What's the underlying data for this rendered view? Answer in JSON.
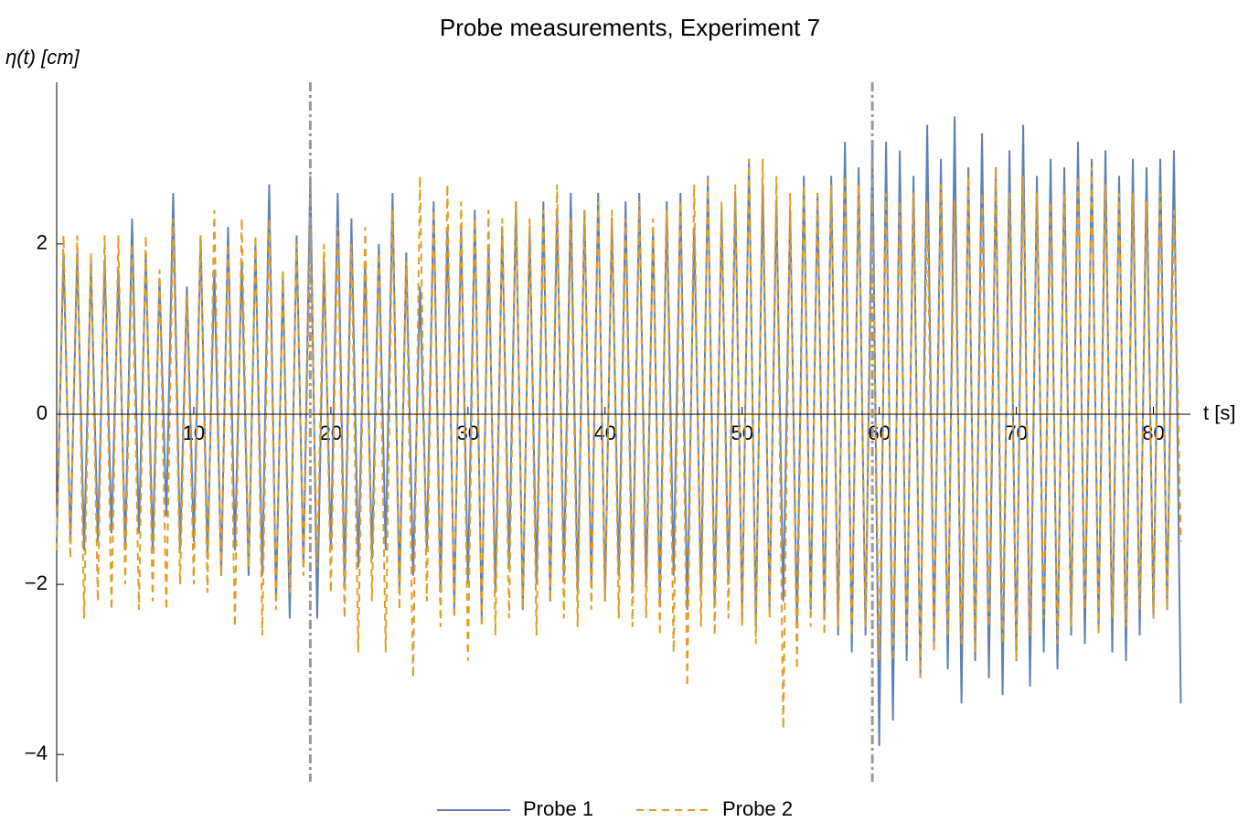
{
  "chart_data": {
    "type": "line",
    "title": "Probe measurements, Experiment 7",
    "ylabel": "η(t) [cm]",
    "xlabel": "t [s]",
    "xlim": [
      0,
      82.7
    ],
    "ylim": [
      -4.32,
      3.9
    ],
    "xticks": [
      10,
      20,
      30,
      40,
      50,
      60,
      70,
      80
    ],
    "yticks": [
      {
        "value": -4,
        "label": "−4"
      },
      {
        "value": -2,
        "label": "−2"
      },
      0,
      2
    ],
    "vlines": [
      18.5,
      59.5
    ],
    "vline_color": "#9a9a9a",
    "legend": "bottom",
    "x": [
      0,
      0.5,
      1,
      1.5,
      2,
      2.5,
      3,
      3.5,
      4,
      4.5,
      5,
      5.5,
      6,
      6.5,
      7,
      7.5,
      8,
      8.5,
      9,
      9.5,
      10,
      10.5,
      11,
      11.5,
      12,
      12.5,
      13,
      13.5,
      14,
      14.5,
      15,
      15.5,
      16,
      16.5,
      17,
      17.5,
      18,
      18.5,
      19,
      19.5,
      20,
      20.5,
      21,
      21.5,
      22,
      22.5,
      23,
      23.5,
      24,
      24.5,
      25,
      25.5,
      26,
      26.5,
      27,
      27.5,
      28,
      28.5,
      29,
      29.5,
      30,
      30.5,
      31,
      31.5,
      32,
      32.5,
      33,
      33.5,
      34,
      34.5,
      35,
      35.5,
      36,
      36.5,
      37,
      37.5,
      38,
      38.5,
      39,
      39.5,
      40,
      40.5,
      41,
      41.5,
      42,
      42.5,
      43,
      43.5,
      44,
      44.5,
      45,
      45.5,
      46,
      46.5,
      47,
      47.5,
      48,
      48.5,
      49,
      49.5,
      50,
      50.5,
      51,
      51.5,
      52,
      52.5,
      53,
      53.5,
      54,
      54.5,
      55,
      55.5,
      56,
      56.5,
      57,
      57.5,
      58,
      58.5,
      59,
      59.5,
      60,
      60.5,
      61,
      61.5,
      62,
      62.5,
      63,
      63.5,
      64,
      64.5,
      65,
      65.5,
      66,
      66.5,
      67,
      67.5,
      68,
      68.5,
      69,
      69.5,
      70,
      70.5,
      71,
      71.5,
      72,
      72.5,
      73,
      73.5,
      74,
      74.5,
      75,
      75.5,
      76,
      76.5,
      77,
      77.5,
      78,
      78.5,
      79,
      79.5,
      80,
      80.5,
      81,
      81.5,
      82
    ],
    "series": [
      {
        "name": "Probe 1",
        "color": "#5e81b5",
        "dash": false,
        "values": [
          -1.5,
          1.9,
          -1.5,
          1.9,
          -1.6,
          1.8,
          -1.5,
          1.8,
          -1.4,
          1.7,
          -1.6,
          2.3,
          -1.4,
          1.9,
          -1.6,
          1.6,
          -1.2,
          2.6,
          -1.6,
          1.5,
          -1.5,
          2.1,
          -1.7,
          1.7,
          -1.9,
          2.2,
          -1.6,
          1.8,
          -1.9,
          2.0,
          -1.9,
          2.7,
          -2.2,
          1.6,
          -2.4,
          2.1,
          -1.8,
          2.8,
          -2.4,
          1.8,
          -1.6,
          2.6,
          -2.0,
          2.3,
          -1.8,
          1.8,
          -1.7,
          2.0,
          -1.6,
          2.6,
          -2.1,
          1.9,
          -1.9,
          1.5,
          -1.6,
          2.5,
          -2.1,
          2.2,
          -2.3,
          2.2,
          -2.0,
          2.4,
          -2.4,
          2.0,
          -2.1,
          2.2,
          -1.8,
          2.5,
          -2.3,
          2.2,
          -2.0,
          2.5,
          -2.2,
          2.4,
          -1.9,
          2.6,
          -2.1,
          2.4,
          -2.0,
          2.6,
          -2.2,
          2.3,
          -1.9,
          2.5,
          -2.1,
          2.6,
          -2.0,
          2.2,
          -2.2,
          2.5,
          -1.9,
          2.6,
          -2.3,
          2.2,
          -2.1,
          2.8,
          -2.2,
          2.4,
          -2.0,
          2.6,
          -2.4,
          3.0,
          -2.5,
          2.7,
          -2.3,
          2.5,
          -2.2,
          2.4,
          -2.5,
          2.8,
          -2.3,
          2.6,
          -2.4,
          2.8,
          -2.6,
          3.2,
          -2.8,
          2.9,
          -2.6,
          3.2,
          -3.9,
          3.2,
          -3.6,
          3.1,
          -2.9,
          2.8,
          -3.1,
          3.4,
          -2.7,
          3.0,
          -3.0,
          3.5,
          -3.4,
          2.9,
          -2.9,
          3.3,
          -3.1,
          2.9,
          -3.3,
          3.1,
          -2.9,
          3.4,
          -3.2,
          2.8,
          -2.8,
          3.0,
          -3.0,
          2.9,
          -2.6,
          3.2,
          -2.7,
          3.0,
          -2.5,
          3.1,
          -2.8,
          2.8,
          -2.9,
          3.0,
          -2.6,
          2.9,
          -2.4,
          3.0,
          -2.3,
          3.1,
          -3.4
        ]
      },
      {
        "name": "Probe 2",
        "color": "#e19c24",
        "dash": true,
        "values": [
          -1.6,
          2.1,
          -1.7,
          2.1,
          -2.4,
          1.9,
          -2.2,
          2.1,
          -2.3,
          2.1,
          -2.0,
          2.0,
          -2.3,
          2.1,
          -2.2,
          1.7,
          -2.3,
          2.3,
          -2.0,
          1.4,
          -2.0,
          2.1,
          -2.1,
          2.4,
          -1.9,
          2.0,
          -2.5,
          2.3,
          -1.8,
          2.1,
          -2.6,
          2.3,
          -2.3,
          1.7,
          -2.1,
          2.0,
          -1.9,
          2.2,
          -1.8,
          2.0,
          -2.1,
          2.2,
          -2.4,
          2.0,
          -2.8,
          2.2,
          -2.2,
          1.9,
          -2.8,
          2.4,
          -2.3,
          1.8,
          -3.1,
          2.8,
          -2.2,
          2.4,
          -2.5,
          2.7,
          -2.4,
          2.5,
          -2.9,
          2.3,
          -2.5,
          2.4,
          -2.6,
          2.3,
          -2.4,
          2.5,
          -2.3,
          2.3,
          -2.6,
          2.4,
          -2.2,
          2.7,
          -2.4,
          2.3,
          -2.5,
          2.4,
          -2.3,
          2.5,
          -2.2,
          2.4,
          -2.4,
          2.3,
          -2.5,
          2.5,
          -2.4,
          2.3,
          -2.6,
          2.4,
          -2.8,
          2.5,
          -3.2,
          2.7,
          -2.5,
          2.8,
          -2.6,
          2.5,
          -2.4,
          2.7,
          -2.5,
          3.0,
          -2.7,
          3.0,
          -2.4,
          2.8,
          -3.7,
          2.6,
          -3.0,
          2.7,
          -2.5,
          2.6,
          -2.6,
          2.7,
          -2.5,
          2.8,
          -2.6,
          2.7,
          -2.5,
          2.5,
          -2.9,
          2.6,
          -2.9,
          2.5,
          -2.7,
          2.6,
          -3.1,
          2.5,
          -2.8,
          2.7,
          -2.6,
          2.5,
          -2.7,
          2.8,
          -2.8,
          2.6,
          -2.5,
          2.9,
          -2.7,
          2.6,
          -2.9,
          2.8,
          -2.6,
          2.6,
          -2.4,
          2.5,
          -2.7,
          2.6,
          -2.5,
          2.8,
          -2.3,
          2.9,
          -2.6,
          2.7,
          -2.4,
          2.6,
          -2.5,
          2.6,
          -2.3,
          2.5,
          -2.4,
          2.6,
          -2.3,
          2.4,
          -1.5
        ]
      }
    ]
  }
}
